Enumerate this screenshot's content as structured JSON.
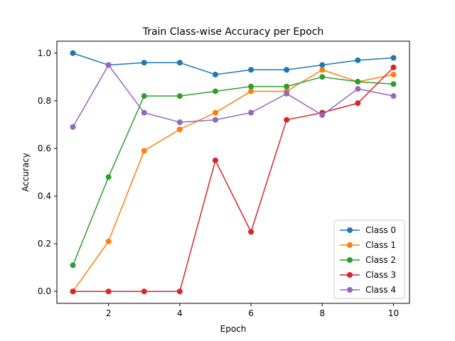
{
  "chart_data": {
    "type": "line",
    "title": "Train Class-wise Accuracy per Epoch",
    "xlabel": "Epoch",
    "ylabel": "Accuracy",
    "x": [
      1,
      2,
      3,
      4,
      5,
      6,
      7,
      8,
      9,
      10
    ],
    "xlim": [
      0.55,
      10.45
    ],
    "ylim": [
      -0.05,
      1.05
    ],
    "xticks": [
      2,
      4,
      6,
      8,
      10
    ],
    "yticks": [
      0.0,
      0.2,
      0.4,
      0.6,
      0.8,
      1.0
    ],
    "xtick_labels": [
      "2",
      "4",
      "6",
      "8",
      "10"
    ],
    "ytick_labels": [
      "0.0",
      "0.2",
      "0.4",
      "0.6",
      "0.8",
      "1.0"
    ],
    "grid": false,
    "legend_position": "bottom-right",
    "series": [
      {
        "name": "Class 0",
        "color": "#1f77b4",
        "values": [
          1.0,
          0.95,
          0.96,
          0.96,
          0.91,
          0.93,
          0.93,
          0.95,
          0.97,
          0.98
        ]
      },
      {
        "name": "Class 1",
        "color": "#ff7f0e",
        "values": [
          0.0,
          0.21,
          0.59,
          0.68,
          0.75,
          0.84,
          0.84,
          0.93,
          0.88,
          0.91
        ]
      },
      {
        "name": "Class 2",
        "color": "#2ca02c",
        "values": [
          0.11,
          0.48,
          0.82,
          0.82,
          0.84,
          0.86,
          0.86,
          0.9,
          0.88,
          0.87
        ]
      },
      {
        "name": "Class 3",
        "color": "#d62728",
        "values": [
          0.0,
          0.0,
          0.0,
          0.0,
          0.55,
          0.25,
          0.72,
          0.75,
          0.79,
          0.94
        ]
      },
      {
        "name": "Class 4",
        "color": "#9467bd",
        "values": [
          0.69,
          0.95,
          0.75,
          0.71,
          0.72,
          0.75,
          0.83,
          0.74,
          0.85,
          0.82
        ]
      }
    ]
  }
}
